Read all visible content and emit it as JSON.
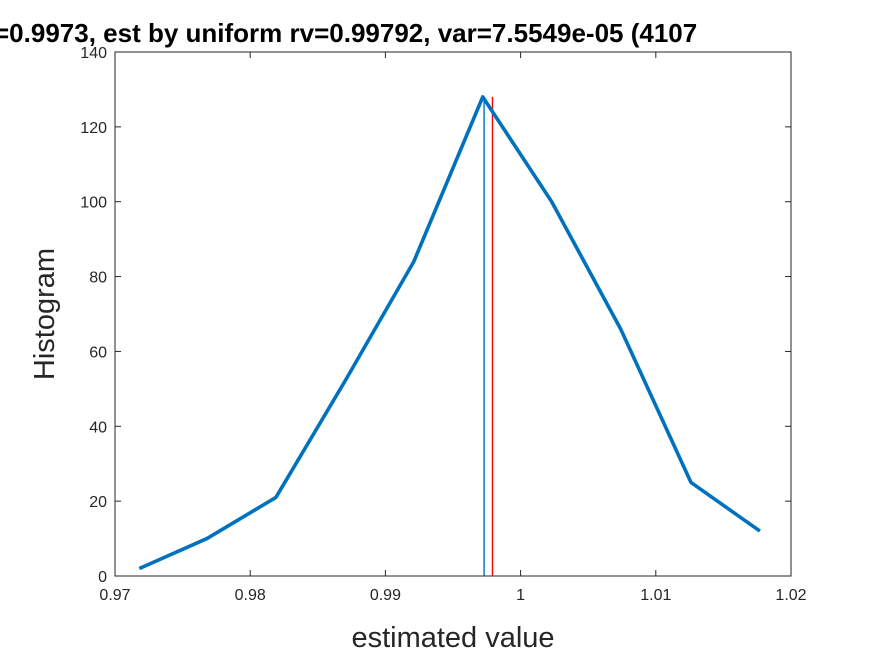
{
  "chart_data": {
    "type": "line",
    "title": "=0.9973, est by uniform rv=0.99792, var=7.5549e-05 (4107",
    "xlabel": "estimated value",
    "ylabel": "Histogram",
    "xlim": [
      0.97,
      1.02
    ],
    "ylim": [
      0,
      140
    ],
    "x_ticks": [
      0.97,
      0.98,
      0.99,
      1,
      1.01,
      1.02
    ],
    "x_tick_labels": [
      "0.97",
      "0.98",
      "0.99",
      "1",
      "1.01",
      "1.02"
    ],
    "y_ticks": [
      0,
      20,
      40,
      60,
      80,
      100,
      120,
      140
    ],
    "y_tick_labels": [
      "0",
      "20",
      "40",
      "60",
      "80",
      "100",
      "120",
      "140"
    ],
    "grid": false,
    "series": [
      {
        "color": "#0072BD",
        "x": [
          0.9718,
          0.9768,
          0.9819,
          0.987,
          0.9921,
          0.9972,
          1.0023,
          1.0074,
          1.0126,
          1.0177
        ],
        "y": [
          2,
          10,
          21,
          52,
          84,
          128,
          100,
          66,
          25,
          12
        ]
      }
    ],
    "vertical_lines": [
      {
        "x": 0.9973,
        "color": "#0072BD"
      },
      {
        "x": 0.99792,
        "color": "#FF0000"
      }
    ]
  }
}
